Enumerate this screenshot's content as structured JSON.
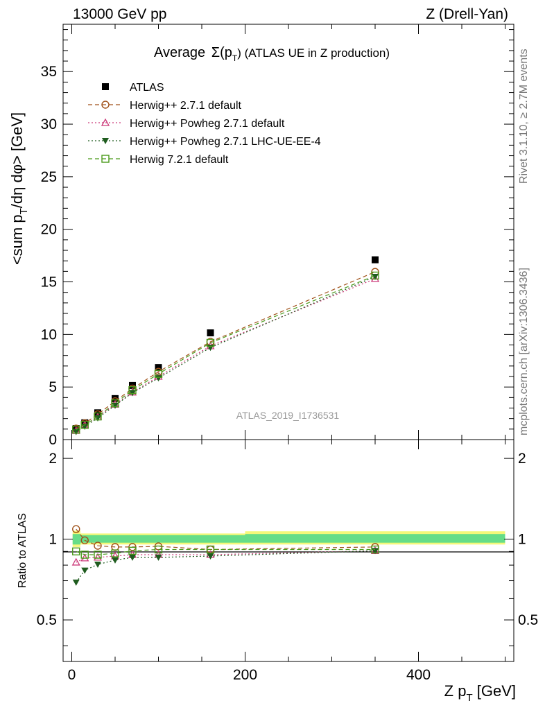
{
  "header": {
    "left": "13000 GeV pp",
    "right": "Z (Drell-Yan)"
  },
  "side_labels": {
    "rivet": "Rivet 3.1.10, ≥ 2.7M events",
    "mcplots": "mcplots.cern.ch [arXiv:1306.3436]"
  },
  "watermark": "ATLAS_2019_I1736531",
  "colors": {
    "atlas": "#000000",
    "herwigpp_default": "#a0521a",
    "herwigpp_powheg": "#cc3a7a",
    "herwigpp_powheg_ue": "#1f5c1f",
    "herwig7": "#4a9a1a",
    "band_inner": "#66dd88",
    "band_outer": "#f4f87a"
  },
  "chart_data": [
    {
      "type": "scatter",
      "title": "Average Σ(pT) (ATLAS UE in Z production)",
      "title_parts": {
        "word": "Average",
        "symbol": "Σ(p",
        "sub": "T",
        "rest": ") (ATLAS UE in Z production)"
      },
      "ylabel": "<sum pT/dη dφ> [GeV]",
      "ylabel_parts": {
        "a": "<sum p",
        "sub": "T",
        "b": "/dη dφ> [GeV]"
      },
      "xlim": [
        -10,
        510
      ],
      "ylim": [
        0,
        39.5
      ],
      "x_ticks": [
        0,
        200,
        400
      ],
      "y_ticks": [
        0,
        5,
        10,
        15,
        20,
        25,
        30,
        35
      ],
      "x": [
        5,
        15,
        30,
        50,
        70,
        100,
        160,
        350
      ],
      "series": [
        {
          "name": "ATLAS",
          "key": "atlas",
          "marker": "filled-square",
          "values": [
            1.05,
            1.6,
            2.55,
            3.9,
            5.15,
            6.85,
            10.15,
            17.1
          ]
        },
        {
          "name": "Herwig++ 2.7.1 default",
          "key": "herwigpp_default",
          "marker": "open-circle",
          "dash": "6,4",
          "values": [
            1.05,
            1.55,
            2.4,
            3.65,
            4.85,
            6.45,
            9.3,
            15.95
          ]
        },
        {
          "name": "Herwig++ Powheg 2.7.1 default",
          "key": "herwigpp_powheg",
          "marker": "open-triangle-up",
          "dash": "2,3",
          "values": [
            0.85,
            1.4,
            2.15,
            3.35,
            4.5,
            6.0,
            8.9,
            15.3
          ]
        },
        {
          "name": "Herwig++ Powheg 2.7.1 LHC-UE-EE-4",
          "key": "herwigpp_powheg_ue",
          "marker": "filled-triangle-down",
          "dash": "2,3",
          "values": [
            0.75,
            1.25,
            2.05,
            3.25,
            4.45,
            5.85,
            8.75,
            15.5
          ]
        },
        {
          "name": "Herwig 7.2.1 default",
          "key": "herwig7",
          "marker": "open-square",
          "dash": "6,4",
          "values": [
            0.95,
            1.4,
            2.2,
            3.45,
            4.7,
            6.25,
            9.2,
            15.6
          ]
        }
      ]
    },
    {
      "type": "scatter",
      "xlabel": "Z pT [GeV]",
      "xlabel_parts": {
        "a": "Z p",
        "sub": "T",
        "b": " [GeV]"
      },
      "ylabel": "Ratio to ATLAS",
      "xlim": [
        -10,
        510
      ],
      "ylim": [
        0.35,
        2.35
      ],
      "log_y": true,
      "x_ticks": [
        0,
        200,
        400
      ],
      "y_ticks": [
        0.5,
        1,
        2
      ],
      "y_tick_labels": [
        "0.5",
        "1",
        "2"
      ],
      "x": [
        5,
        15,
        30,
        50,
        70,
        100,
        160,
        350
      ],
      "series": [
        {
          "name": "Herwig++ 2.7.1 default",
          "key": "herwigpp_default",
          "values": [
            1.09,
            0.99,
            0.945,
            0.935,
            0.935,
            0.94,
            0.915,
            0.935
          ]
        },
        {
          "name": "Herwig++ Powheg 2.7.1 default",
          "key": "herwigpp_powheg",
          "values": [
            0.82,
            0.85,
            0.855,
            0.865,
            0.875,
            0.875,
            0.875,
            0.905
          ]
        },
        {
          "name": "Herwig++ Powheg 2.7.1 LHC-UE-EE-4",
          "key": "herwigpp_powheg_ue",
          "values": [
            0.69,
            0.765,
            0.805,
            0.835,
            0.855,
            0.855,
            0.865,
            0.905
          ]
        },
        {
          "name": "Herwig 7.2.1 default",
          "key": "herwig7",
          "values": [
            0.9,
            0.875,
            0.875,
            0.885,
            0.905,
            0.915,
            0.915,
            0.915
          ]
        }
      ]
    }
  ]
}
